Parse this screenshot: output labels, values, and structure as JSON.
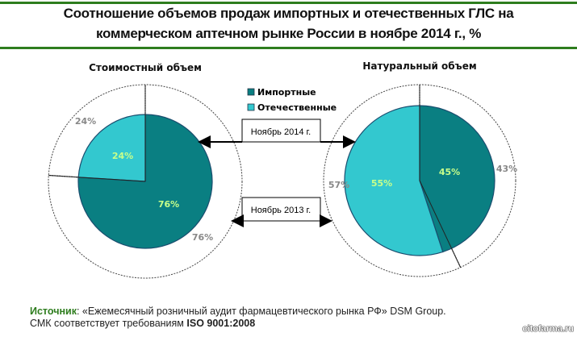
{
  "title_line1": "Соотношение объемов продаж импортных и отечественных ГЛС на",
  "title_line2": "коммерческом аптечном рынке России в ноябре 2014 г., %",
  "colors": {
    "imported": "#0a7f82",
    "domestic": "#33c8cf",
    "accent_line": "#2e7d1e",
    "label": "#c8ff8a",
    "outer_label": "#888888"
  },
  "legend": [
    {
      "label": "Импортные",
      "color": "#0a7f82"
    },
    {
      "label": "Отечественные",
      "color": "#33c8cf"
    }
  ],
  "callouts": {
    "inner": "Ноябрь 2014 г.",
    "outer": "Ноябрь 2013 г."
  },
  "chart_data": [
    {
      "type": "pie",
      "title": "Стоимостный объем",
      "categories": [
        "Импортные",
        "Отечественные"
      ],
      "series": [
        {
          "name": "Ноябрь 2014 г.",
          "values": [
            76,
            24
          ]
        },
        {
          "name": "Ноябрь 2013 г.",
          "values": [
            76,
            24
          ]
        }
      ],
      "labels_inner": [
        "76%",
        "24%"
      ],
      "labels_outer": [
        "76%",
        "24%"
      ]
    },
    {
      "type": "pie",
      "title": "Натуральный объем",
      "categories": [
        "Импортные",
        "Отечественные"
      ],
      "series": [
        {
          "name": "Ноябрь 2014 г.",
          "values": [
            45,
            55
          ]
        },
        {
          "name": "Ноябрь 2013 г.",
          "values": [
            43,
            57
          ]
        }
      ],
      "labels_inner": [
        "45%",
        "55%"
      ],
      "labels_outer": [
        "43%",
        "57%"
      ]
    }
  ],
  "source": {
    "label": "Источник",
    "text": ": «Ежемесячный розничный аудит фармацевтического рынка РФ» DSM Group.",
    "line2": "СМК соответствует требованиям ",
    "iso": "ISO 9001:2008"
  },
  "watermark": "citofarma.ru"
}
